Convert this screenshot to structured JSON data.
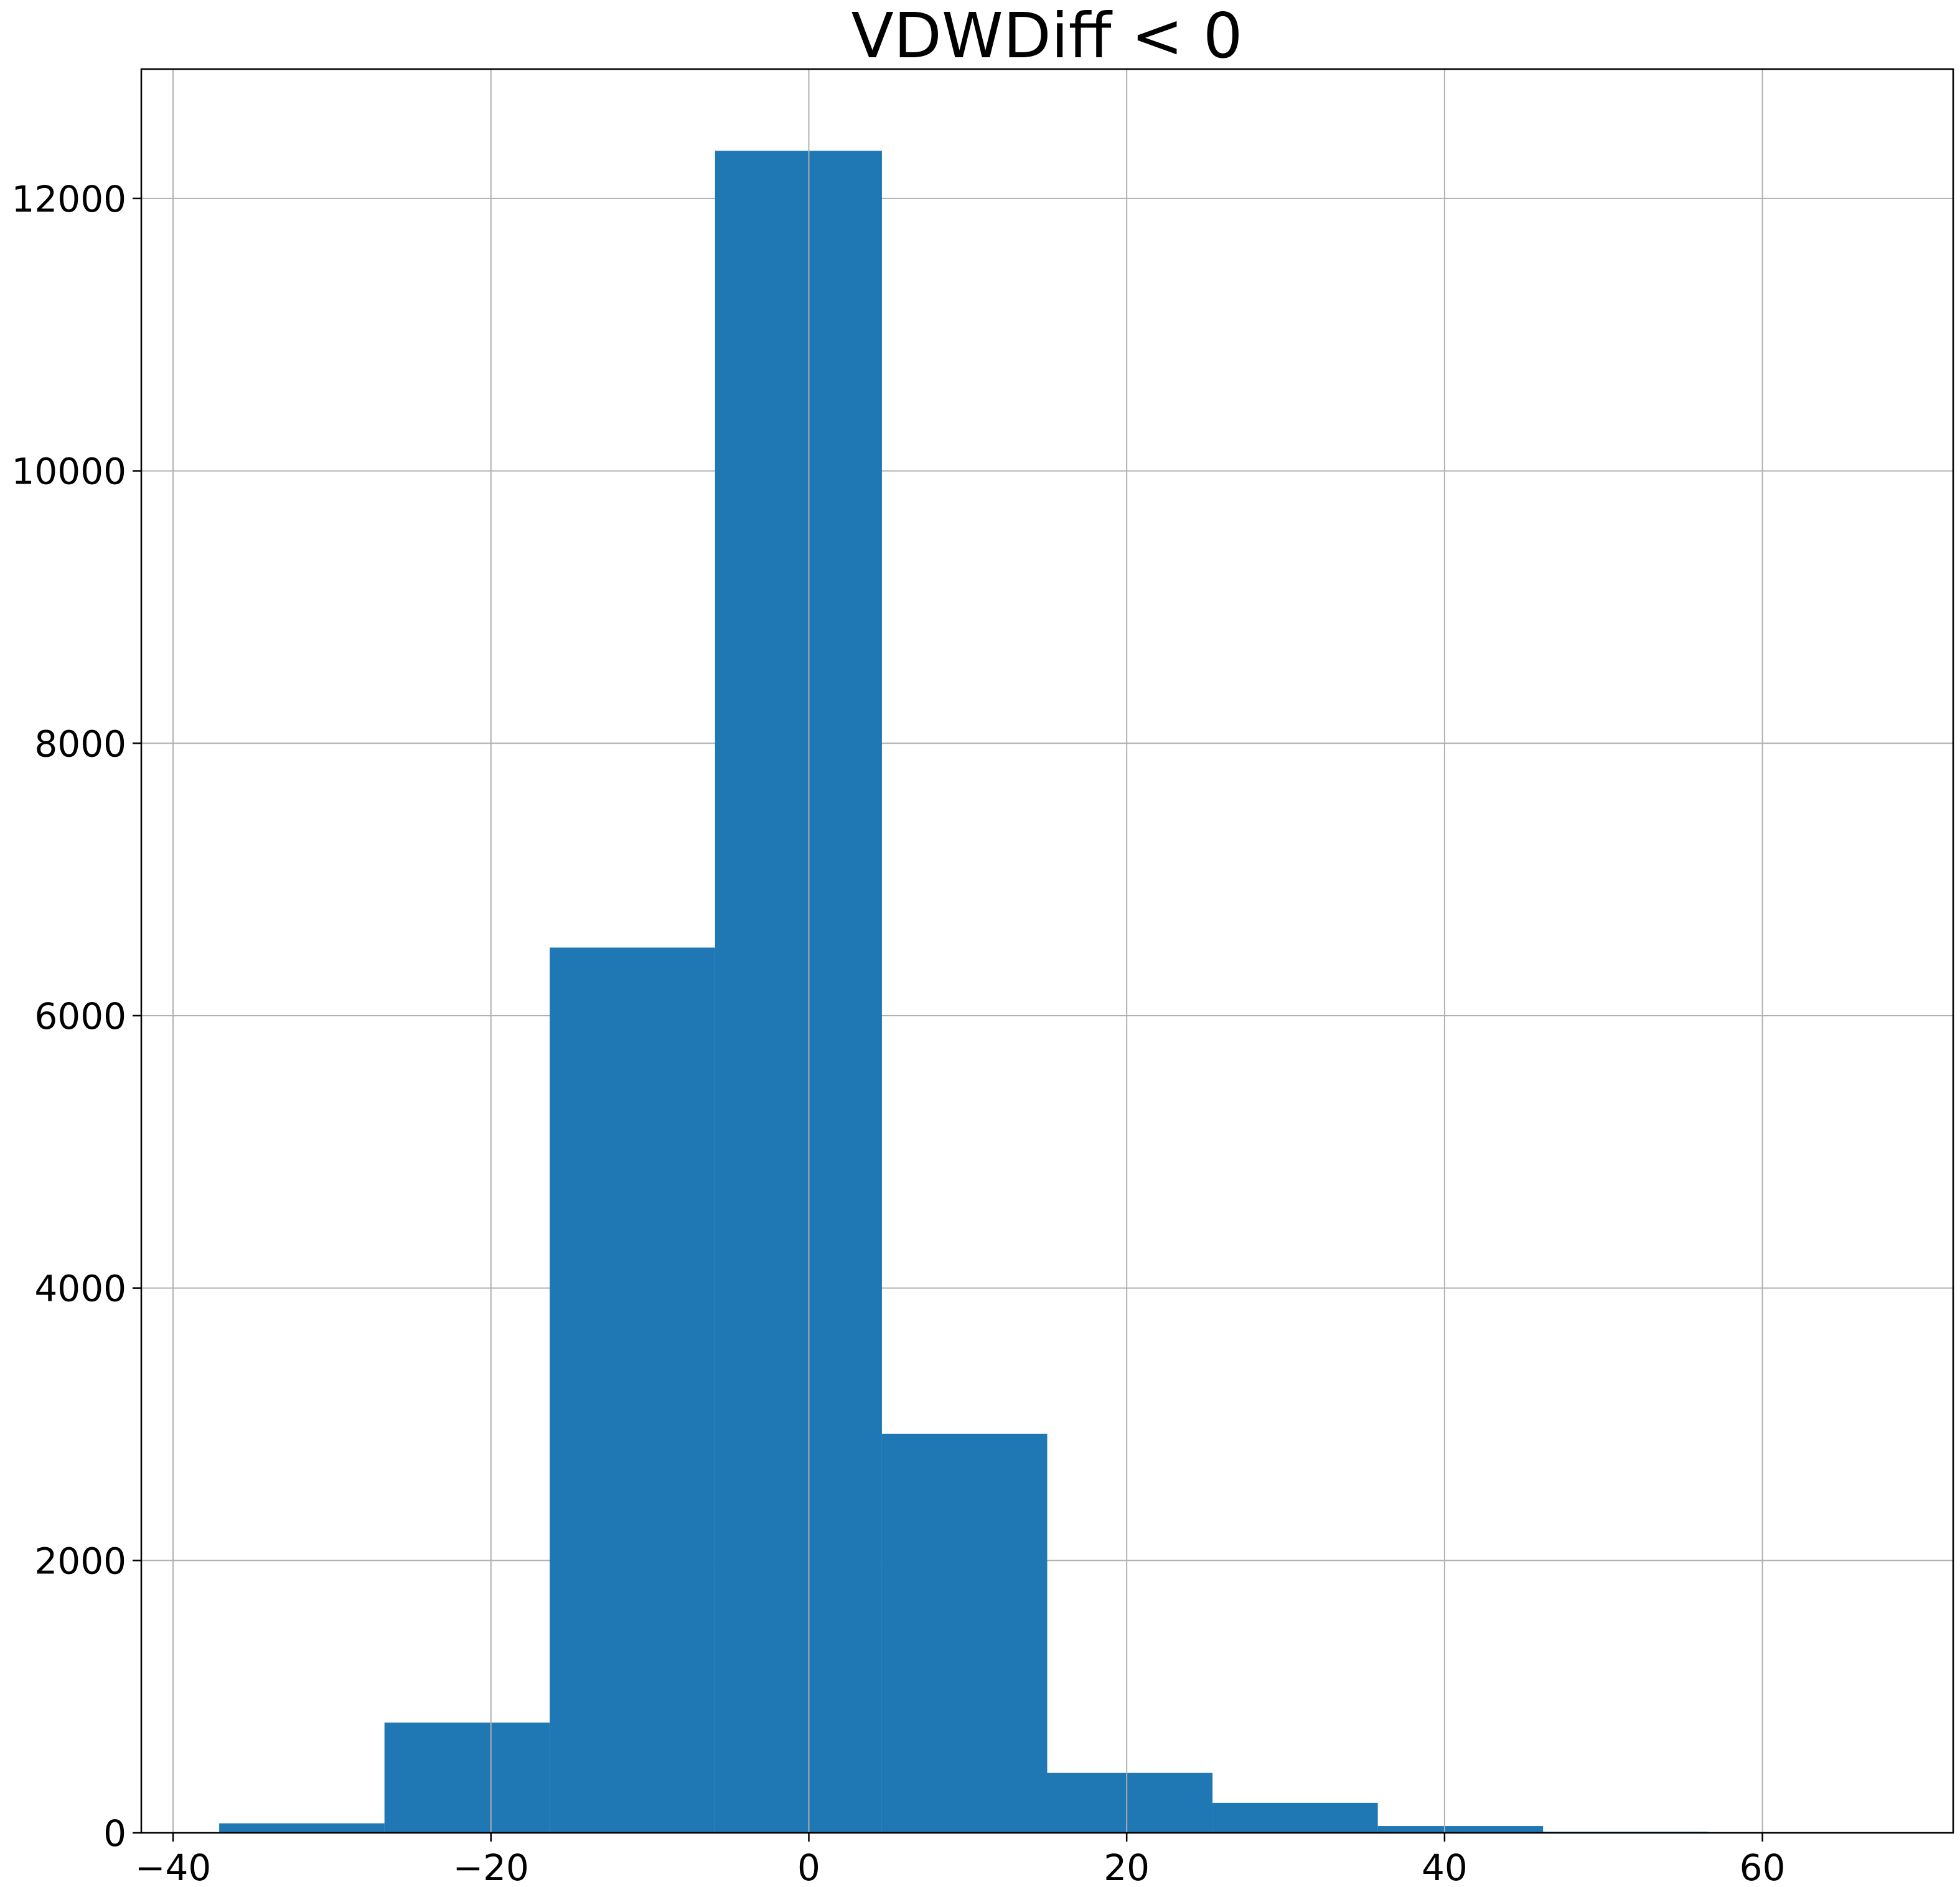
{
  "chart_data": {
    "type": "bar",
    "title": "VDWDiff < 0",
    "xlabel": "",
    "ylabel": "",
    "xlim": [
      -42,
      72
    ],
    "ylim": [
      0,
      12950
    ],
    "grid": true,
    "bar_color": "#1f77b4",
    "grid_color": "#b0b0b0",
    "bins": [
      {
        "x0": -37.1,
        "x1": -26.7,
        "count": 70
      },
      {
        "x0": -26.7,
        "x1": -16.3,
        "count": 810
      },
      {
        "x0": -16.3,
        "x1": -5.9,
        "count": 6500
      },
      {
        "x0": -5.9,
        "x1": 4.6,
        "count": 12350
      },
      {
        "x0": 4.6,
        "x1": 15.0,
        "count": 2930
      },
      {
        "x0": 15.0,
        "x1": 25.4,
        "count": 440
      },
      {
        "x0": 25.4,
        "x1": 35.8,
        "count": 220
      },
      {
        "x0": 35.8,
        "x1": 46.2,
        "count": 50
      },
      {
        "x0": 46.2,
        "x1": 56.6,
        "count": 8
      },
      {
        "x0": 56.6,
        "x1": 67.0,
        "count": 3
      }
    ],
    "x_ticks": [
      {
        "value": -40,
        "label": "−40"
      },
      {
        "value": -20,
        "label": "−20"
      },
      {
        "value": 0,
        "label": "0"
      },
      {
        "value": 20,
        "label": "20"
      },
      {
        "value": 40,
        "label": "40"
      },
      {
        "value": 60,
        "label": "60"
      }
    ],
    "y_ticks": [
      {
        "value": 0,
        "label": "0"
      },
      {
        "value": 2000,
        "label": "2000"
      },
      {
        "value": 4000,
        "label": "4000"
      },
      {
        "value": 6000,
        "label": "6000"
      },
      {
        "value": 8000,
        "label": "8000"
      },
      {
        "value": 10000,
        "label": "10000"
      },
      {
        "value": 12000,
        "label": "12000"
      }
    ]
  }
}
